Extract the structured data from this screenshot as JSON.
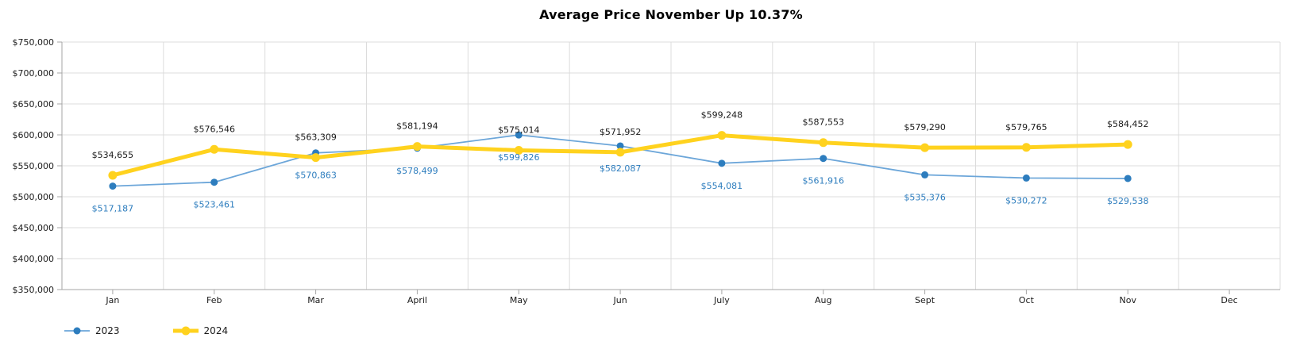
{
  "page": {
    "background": "#ffffff"
  },
  "chart_data": {
    "type": "line",
    "title": "Average Price November Up 10.37%",
    "categories": [
      "Jan",
      "Feb",
      "Mar",
      "April",
      "May",
      "Jun",
      "July",
      "Aug",
      "Sept",
      "Oct",
      "Nov",
      "Dec"
    ],
    "series": [
      {
        "name": "2023",
        "values": [
          517187,
          523461,
          570863,
          578499,
          599826,
          582087,
          554081,
          561916,
          535376,
          530272,
          529538,
          null
        ],
        "line_color": "#6ca6d9",
        "marker_color": "#2d7dbe",
        "label_color": "#2d7dbe",
        "line_width": 1.8,
        "marker_radius": 4.5,
        "label_offset": 28
      },
      {
        "name": "2024",
        "values": [
          534655,
          576546,
          563309,
          581194,
          575014,
          571952,
          599248,
          587553,
          579290,
          579765,
          584452,
          null
        ],
        "line_color": "#ffd21e",
        "marker_color": "#ffd21e",
        "label_color": "#1a1a1a",
        "line_width": 5,
        "marker_radius": 5.5,
        "label_offset": -26
      }
    ],
    "ylim": [
      350000,
      750000
    ],
    "ytick_step": 50000,
    "ytick_labels": [
      "$350,000",
      "$400,000",
      "$450,000",
      "$500,000",
      "$550,000",
      "$600,000",
      "$650,000",
      "$700,000",
      "$750,000"
    ],
    "value_prefix": "$",
    "grid": true,
    "legend_position": "bottom-left",
    "colors": {
      "grid": "#dcdcdc",
      "axis": "#a6a6a6",
      "tick_label": "#1a1a1a"
    }
  }
}
